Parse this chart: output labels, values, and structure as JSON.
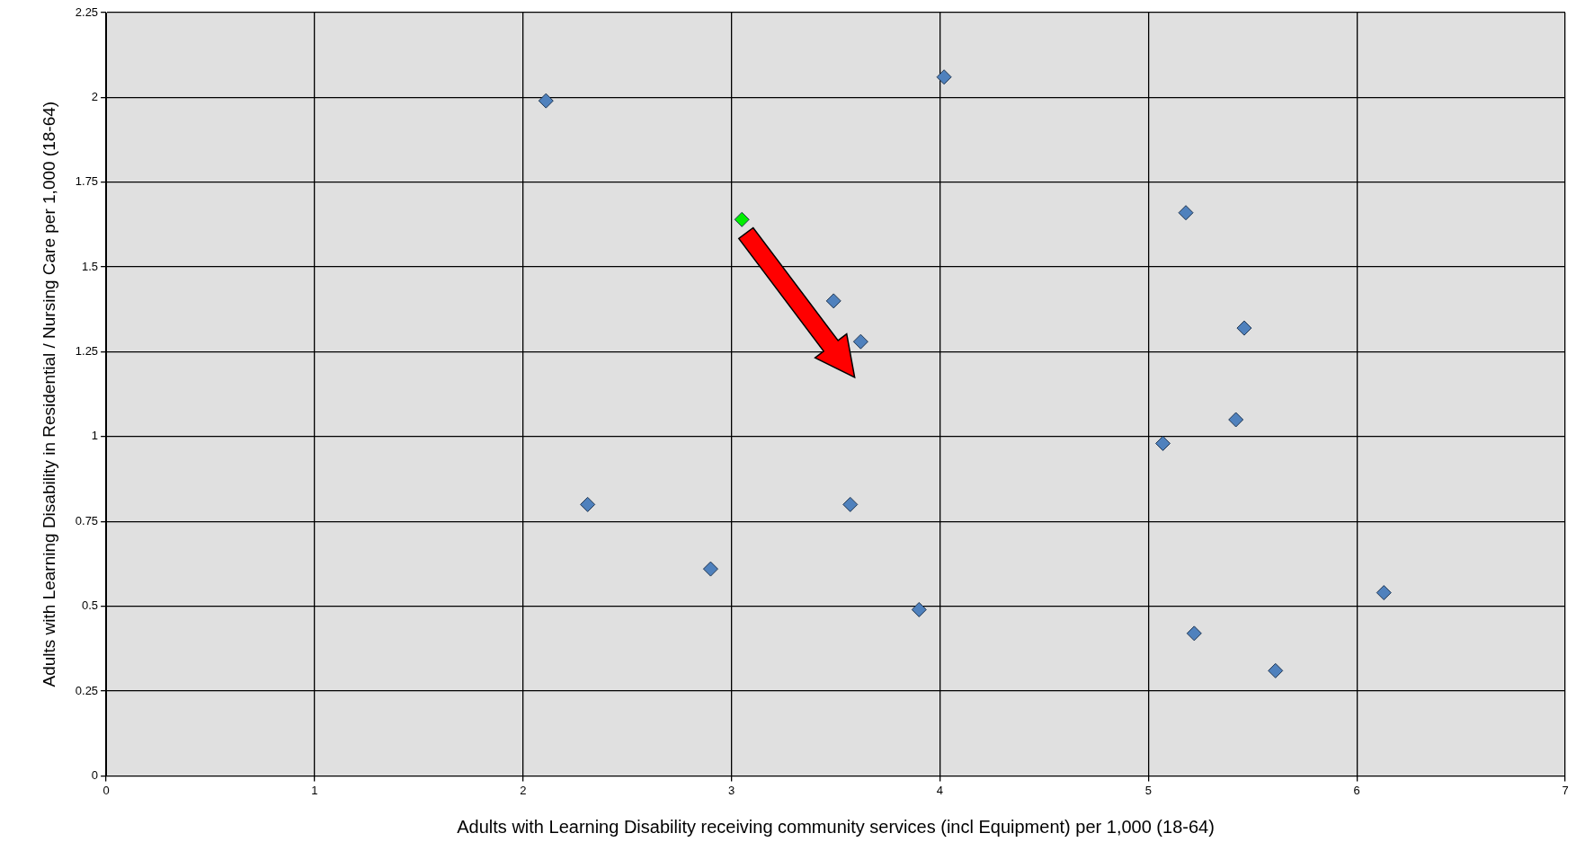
{
  "chart_data": {
    "type": "scatter",
    "xlabel": "Adults with Learning Disability receiving community services (incl Equipment) per 1,000 (18-64)",
    "ylabel": "Adults with Learning Disability in Residential / Nursing Care per 1,000 (18-64)",
    "x": [
      2.11,
      4.02,
      3.05,
      5.18,
      3.49,
      3.62,
      5.46,
      5.42,
      5.07,
      2.31,
      3.57,
      2.9,
      3.9,
      6.13,
      5.22,
      5.61
    ],
    "values": [
      1.99,
      2.06,
      1.64,
      1.66,
      1.4,
      1.28,
      1.32,
      1.05,
      0.98,
      0.8,
      0.8,
      0.61,
      0.49,
      0.54,
      0.42,
      0.31
    ],
    "colors": [
      "#4f81bd",
      "#4f81bd",
      "#00ee00",
      "#4f81bd",
      "#4f81bd",
      "#4f81bd",
      "#4f81bd",
      "#4f81bd",
      "#4f81bd",
      "#4f81bd",
      "#4f81bd",
      "#4f81bd",
      "#4f81bd",
      "#4f81bd",
      "#4f81bd",
      "#4f81bd"
    ],
    "xlim": [
      0,
      7
    ],
    "xticks": [
      0,
      1,
      2,
      3,
      4,
      5,
      6,
      7
    ],
    "ylim": [
      0,
      2.25
    ],
    "yticks": [
      0,
      0.25,
      0.5,
      0.75,
      1,
      1.25,
      1.5,
      1.75,
      2,
      2.25
    ],
    "grid": true,
    "marker": "diamond",
    "legend": false
  }
}
